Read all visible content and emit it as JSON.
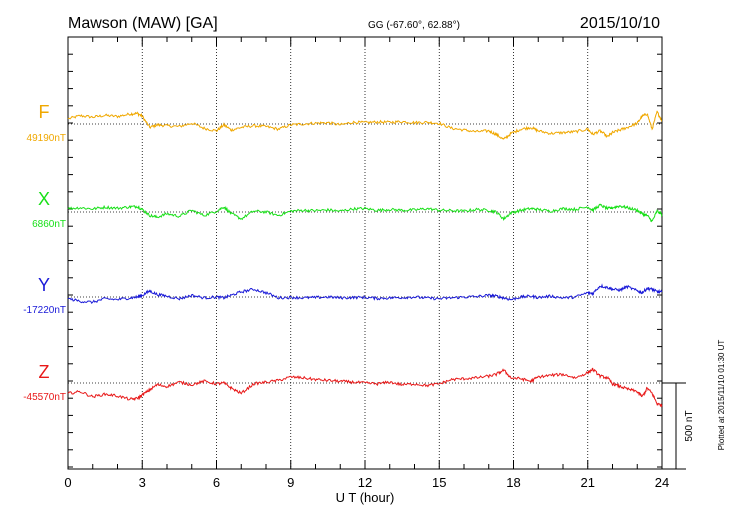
{
  "header": {
    "station": "Mawson (MAW)  [GA]",
    "coords": "GG (-67.60°,  62.88°)",
    "date": "2015/10/10"
  },
  "footer": {
    "plotted": "Plotted at 2015/11/10 01:30 UT"
  },
  "chart_data": {
    "type": "line",
    "xlabel": "U T (hour)",
    "xlim": [
      0,
      24
    ],
    "xticks": [
      "0",
      "3",
      "6",
      "9",
      "12",
      "15",
      "18",
      "21",
      "24"
    ],
    "scale_bar_label": "500 nT",
    "series": [
      {
        "name": "F",
        "baseline": "49190nT",
        "color": "#f0a800",
        "x": [
          0,
          0.5,
          1,
          1.5,
          2,
          2.5,
          2.8,
          3,
          3.3,
          3.6,
          4,
          4.5,
          5,
          5.5,
          6,
          6.3,
          6.6,
          7,
          7.5,
          8,
          8.5,
          9,
          9.5,
          10,
          10.5,
          11,
          11.5,
          12,
          12.5,
          13,
          13.5,
          14,
          14.5,
          15,
          15.5,
          16,
          16.5,
          17,
          17.3,
          17.6,
          17.9,
          18.3,
          18.7,
          19,
          19.5,
          20,
          20.5,
          21,
          21.2,
          21.5,
          21.8,
          22,
          22.3,
          22.6,
          23,
          23.2,
          23.4,
          23.6,
          23.8,
          24
        ],
        "y": [
          30,
          48,
          40,
          50,
          44,
          58,
          62,
          45,
          -20,
          -5,
          -10,
          -15,
          5,
          -25,
          -40,
          -5,
          -35,
          -20,
          -10,
          -15,
          -30,
          -5,
          0,
          5,
          8,
          -5,
          10,
          8,
          12,
          10,
          14,
          8,
          10,
          4,
          -25,
          -35,
          -45,
          -40,
          -60,
          -90,
          -55,
          -30,
          -20,
          -40,
          -55,
          -50,
          -45,
          -30,
          -60,
          -40,
          -75,
          -50,
          -35,
          -20,
          5,
          45,
          60,
          -30,
          70,
          20
        ]
      },
      {
        "name": "X",
        "baseline": "6860nT",
        "color": "#18e018",
        "x": [
          0,
          0.5,
          1,
          1.5,
          2,
          2.5,
          2.8,
          3,
          3.3,
          3.6,
          4,
          4.5,
          5,
          5.5,
          6,
          6.3,
          6.6,
          7,
          7.5,
          8,
          8.5,
          9,
          9.5,
          10,
          10.5,
          11,
          11.5,
          12,
          12.5,
          13,
          13.5,
          14,
          14.5,
          15,
          15.5,
          16,
          16.5,
          17,
          17.3,
          17.6,
          17.9,
          18.3,
          18.7,
          19,
          19.5,
          20,
          20.5,
          21,
          21.2,
          21.5,
          21.8,
          22,
          22.3,
          22.6,
          23,
          23.2,
          23.4,
          23.6,
          23.8,
          24
        ],
        "y": [
          20,
          25,
          18,
          28,
          22,
          30,
          32,
          15,
          -20,
          -30,
          -10,
          -25,
          10,
          -20,
          5,
          30,
          -10,
          -40,
          5,
          0,
          -20,
          5,
          10,
          8,
          12,
          5,
          18,
          20,
          10,
          15,
          10,
          12,
          20,
          10,
          8,
          5,
          15,
          10,
          0,
          -40,
          -5,
          10,
          20,
          15,
          5,
          20,
          15,
          30,
          10,
          40,
          20,
          25,
          35,
          25,
          10,
          -10,
          -20,
          -55,
          5,
          -15
        ]
      },
      {
        "name": "Y",
        "baseline": "-17220nT",
        "color": "#1a1ad8",
        "x": [
          0,
          0.5,
          1,
          1.5,
          2,
          2.5,
          2.8,
          3,
          3.3,
          3.6,
          4,
          4.5,
          5,
          5.5,
          6,
          6.3,
          6.6,
          7,
          7.5,
          8,
          8.5,
          9,
          9.5,
          10,
          10.5,
          11,
          11.5,
          12,
          12.5,
          13,
          13.5,
          14,
          14.5,
          15,
          15.5,
          16,
          16.5,
          17,
          17.3,
          17.6,
          17.9,
          18.3,
          18.7,
          19,
          19.5,
          20,
          20.5,
          21,
          21.2,
          21.5,
          21.8,
          22,
          22.3,
          22.6,
          23,
          23.2,
          23.4,
          23.6,
          23.8,
          24
        ],
        "y": [
          -10,
          -25,
          -30,
          -10,
          -15,
          -5,
          0,
          10,
          35,
          15,
          5,
          -10,
          10,
          -5,
          0,
          -5,
          10,
          30,
          45,
          25,
          -5,
          -2,
          -5,
          -3,
          0,
          -5,
          -3,
          -2,
          -8,
          -5,
          -3,
          0,
          -6,
          -10,
          -5,
          0,
          2,
          10,
          5,
          -5,
          -15,
          0,
          5,
          -3,
          5,
          -5,
          0,
          25,
          20,
          65,
          55,
          45,
          40,
          60,
          35,
          25,
          50,
          45,
          30,
          30
        ]
      },
      {
        "name": "Z",
        "baseline": "-45570nT",
        "color": "#e81818",
        "x": [
          0,
          0.5,
          1,
          1.5,
          2,
          2.5,
          2.8,
          3,
          3.3,
          3.6,
          4,
          4.5,
          5,
          5.5,
          6,
          6.3,
          6.6,
          7,
          7.5,
          8,
          8.5,
          9,
          9.5,
          10,
          10.5,
          11,
          11.5,
          12,
          12.5,
          13,
          13.5,
          14,
          14.5,
          15,
          15.5,
          16,
          16.5,
          17,
          17.3,
          17.6,
          17.9,
          18.3,
          18.7,
          19,
          19.5,
          20,
          20.5,
          21,
          21.2,
          21.5,
          21.8,
          22,
          22.3,
          22.6,
          23,
          23.2,
          23.4,
          23.6,
          23.8,
          24
        ],
        "y": [
          -60,
          -50,
          -80,
          -65,
          -75,
          -95,
          -90,
          -70,
          -40,
          -10,
          -20,
          5,
          -10,
          10,
          -5,
          0,
          -30,
          -60,
          -5,
          5,
          15,
          35,
          30,
          20,
          15,
          10,
          5,
          0,
          -5,
          5,
          -10,
          -5,
          -15,
          -5,
          20,
          25,
          30,
          40,
          50,
          75,
          30,
          25,
          10,
          35,
          45,
          50,
          30,
          60,
          80,
          40,
          30,
          -5,
          -20,
          -35,
          -50,
          -80,
          -30,
          -60,
          -120,
          -130
        ]
      }
    ]
  }
}
